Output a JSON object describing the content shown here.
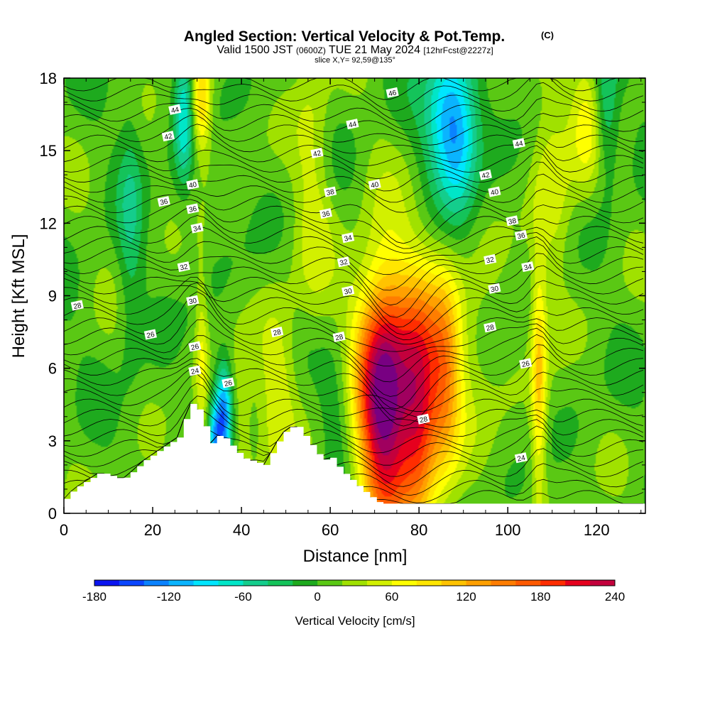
{
  "title": "Angled Section: Vertical Velocity & Pot.Temp.",
  "title_mark": "(C)",
  "subtitle": {
    "prefix": "Valid 1500 JST",
    "utc": "(0600Z)",
    "date": "TUE 21 May 2024",
    "forecast": "[12hrFcst@2227z]"
  },
  "slice_label": "slice X,Y= 92,59@135°",
  "chart_data": {
    "type": "heatmap",
    "xlabel": "Distance [nm]",
    "ylabel": "Height [Kft MSL]",
    "xlim": [
      0,
      131
    ],
    "ylim": [
      0,
      18
    ],
    "x_ticks": [
      "0",
      "20",
      "40",
      "60",
      "80",
      "100",
      "120"
    ],
    "y_ticks": [
      "0",
      "3",
      "6",
      "9",
      "12",
      "15",
      "18"
    ],
    "colorbar": {
      "label": "Vertical Velocity [cm/s]",
      "tick_labels": [
        "-180",
        "-120",
        "-60",
        "0",
        "60",
        "120",
        "180",
        "240"
      ],
      "min": -180,
      "max": 240,
      "step": 20,
      "colors": [
        "#0a14f0",
        "#0a46ff",
        "#0a82ff",
        "#0ab4ff",
        "#00e6ff",
        "#00e6c8",
        "#14cd8c",
        "#14c35a",
        "#1eaa1e",
        "#5ac814",
        "#a0e100",
        "#d2f000",
        "#ffff00",
        "#ffe600",
        "#ffc300",
        "#ffa000",
        "#ff7d00",
        "#ff5a00",
        "#ff2d00",
        "#e6001e",
        "#c3003c",
        "#a0005f",
        "#780082"
      ]
    },
    "terrain_profile": [
      [
        0,
        0.6
      ],
      [
        2,
        1.0
      ],
      [
        8,
        1.7
      ],
      [
        13,
        1.4
      ],
      [
        15,
        1.7
      ],
      [
        18,
        2.2
      ],
      [
        22,
        2.7
      ],
      [
        26,
        3.2
      ],
      [
        28,
        4.6
      ],
      [
        30,
        4.3
      ],
      [
        33,
        2.9
      ],
      [
        35,
        3.3
      ],
      [
        38,
        2.7
      ],
      [
        40,
        2.3
      ],
      [
        45,
        2.0
      ],
      [
        49,
        3.3
      ],
      [
        52,
        3.7
      ],
      [
        56,
        2.7
      ],
      [
        58,
        2.2
      ],
      [
        60,
        2.3
      ],
      [
        62,
        1.8
      ],
      [
        65,
        1.3
      ],
      [
        68,
        0.8
      ],
      [
        71,
        0.4
      ],
      [
        131,
        0.4
      ]
    ],
    "vertical_velocity_features": [
      {
        "x": 72,
        "y": 4.2,
        "dx": 4,
        "dy": 3.8,
        "value": 220
      },
      {
        "x": 80,
        "y": 4.0,
        "dx": 3,
        "dy": 3.0,
        "value": 150
      },
      {
        "x": 78,
        "y": 6.5,
        "dx": 10,
        "dy": 3.0,
        "value": 80
      },
      {
        "x": 86,
        "y": 5.5,
        "dx": 2.5,
        "dy": 3.0,
        "value": 80
      },
      {
        "x": 107,
        "y": 5.5,
        "dx": 1.2,
        "dy": 3.5,
        "value": 90
      },
      {
        "x": 31,
        "y": 17.0,
        "dx": 1.5,
        "dy": 1.5,
        "value": 100
      },
      {
        "x": 31,
        "y": 6.5,
        "dx": 1.0,
        "dy": 2.5,
        "value": 50
      },
      {
        "x": 36,
        "y": 4.0,
        "dx": 1.3,
        "dy": 1.5,
        "value": -140
      },
      {
        "x": 34,
        "y": 3.0,
        "dx": 1.0,
        "dy": 1.2,
        "value": -90
      },
      {
        "x": 87,
        "y": 16.5,
        "dx": 4,
        "dy": 2.0,
        "value": -120
      },
      {
        "x": 89,
        "y": 14.5,
        "dx": 3,
        "dy": 2.0,
        "value": -50
      },
      {
        "x": 27,
        "y": 16.5,
        "dx": 1.5,
        "dy": 2.0,
        "value": -80
      },
      {
        "x": 122,
        "y": 16.5,
        "dx": 2,
        "dy": 2.0,
        "value": -70
      },
      {
        "x": 48,
        "y": 5.0,
        "dx": 3,
        "dy": 2.5,
        "value": 50
      },
      {
        "x": 118,
        "y": 16.0,
        "dx": 3,
        "dy": 2.0,
        "value": 60
      },
      {
        "x": 62,
        "y": 5.0,
        "dx": 3,
        "dy": 2.0,
        "value": -40
      },
      {
        "x": 40,
        "y": 4.0,
        "dx": 2,
        "dy": 2.0,
        "value": 30
      },
      {
        "x": 15,
        "y": 12.0,
        "dx": 2,
        "dy": 4.0,
        "value": -40
      },
      {
        "x": 56,
        "y": 14.0,
        "dx": 3,
        "dy": 4.0,
        "value": 40
      },
      {
        "x": 110,
        "y": 14.0,
        "dx": 3,
        "dy": 4.0,
        "value": 40
      }
    ],
    "contour_labels": [
      {
        "text": "44",
        "x": 25,
        "y": 16.7
      },
      {
        "text": "42",
        "x": 23.5,
        "y": 15.6
      },
      {
        "text": "46",
        "x": 74,
        "y": 17.4
      },
      {
        "text": "44",
        "x": 65,
        "y": 16.1
      },
      {
        "text": "44",
        "x": 102.5,
        "y": 15.3
      },
      {
        "text": "42",
        "x": 57,
        "y": 14.9
      },
      {
        "text": "42",
        "x": 95,
        "y": 14.0
      },
      {
        "text": "40",
        "x": 29,
        "y": 13.6
      },
      {
        "text": "40",
        "x": 70,
        "y": 13.6
      },
      {
        "text": "40",
        "x": 97,
        "y": 13.3
      },
      {
        "text": "38",
        "x": 60,
        "y": 13.3
      },
      {
        "text": "38",
        "x": 101,
        "y": 12.1
      },
      {
        "text": "36",
        "x": 22.5,
        "y": 12.9
      },
      {
        "text": "36",
        "x": 29,
        "y": 12.6
      },
      {
        "text": "36",
        "x": 59,
        "y": 12.4
      },
      {
        "text": "36",
        "x": 103,
        "y": 11.5
      },
      {
        "text": "34",
        "x": 30,
        "y": 11.8
      },
      {
        "text": "34",
        "x": 64,
        "y": 11.4
      },
      {
        "text": "34",
        "x": 104.5,
        "y": 10.2
      },
      {
        "text": "32",
        "x": 27,
        "y": 10.2
      },
      {
        "text": "32",
        "x": 63,
        "y": 10.4
      },
      {
        "text": "32",
        "x": 96,
        "y": 10.5
      },
      {
        "text": "30",
        "x": 29,
        "y": 8.8
      },
      {
        "text": "30",
        "x": 64,
        "y": 9.2
      },
      {
        "text": "30",
        "x": 97,
        "y": 9.3
      },
      {
        "text": "28",
        "x": 3,
        "y": 8.6
      },
      {
        "text": "28",
        "x": 48,
        "y": 7.5
      },
      {
        "text": "28",
        "x": 62,
        "y": 7.3
      },
      {
        "text": "28",
        "x": 96,
        "y": 7.7
      },
      {
        "text": "26",
        "x": 19.5,
        "y": 7.4
      },
      {
        "text": "26",
        "x": 29.5,
        "y": 6.9
      },
      {
        "text": "26",
        "x": 104,
        "y": 6.2
      },
      {
        "text": "24",
        "x": 29.5,
        "y": 5.9
      },
      {
        "text": "26",
        "x": 37,
        "y": 5.4
      },
      {
        "text": "28",
        "x": 81,
        "y": 3.9
      },
      {
        "text": "24",
        "x": 103,
        "y": 2.3
      }
    ]
  }
}
